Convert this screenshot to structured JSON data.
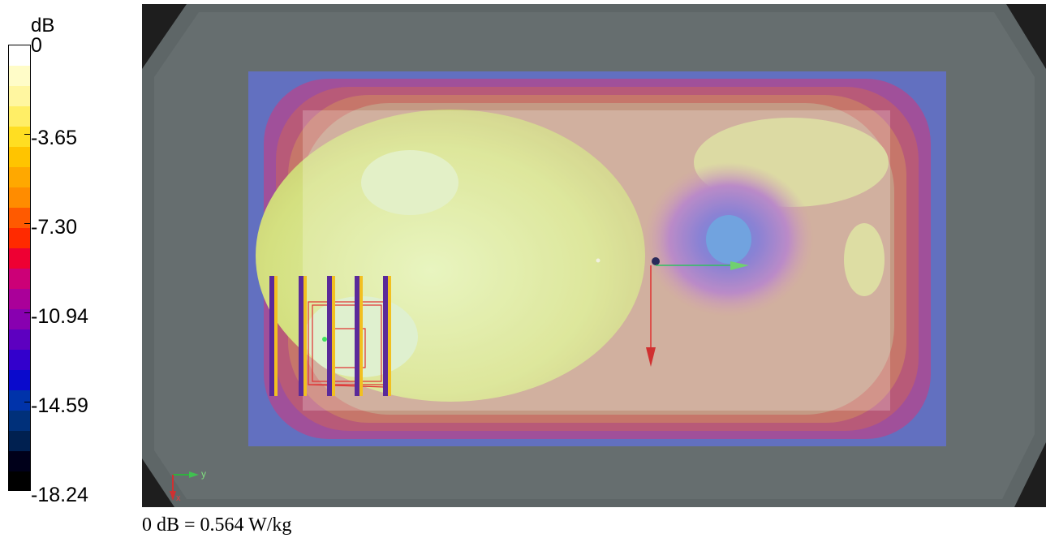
{
  "legend": {
    "unit": "dB",
    "ticks": [
      "0",
      "-3.65",
      "-7.30",
      "-10.94",
      "-14.59",
      "-18.24"
    ],
    "colors": [
      "#ffffff",
      "#fffcc8",
      "#fff6a0",
      "#ffee66",
      "#ffde22",
      "#ffc400",
      "#ffa800",
      "#ff8c00",
      "#ff5a00",
      "#ff2a00",
      "#ee0033",
      "#cc0077",
      "#aa0099",
      "#8800b0",
      "#5d00c0",
      "#3300cc",
      "#0a0acc",
      "#0033aa",
      "#00307a",
      "#002050",
      "#00001a",
      "#000000"
    ]
  },
  "caption": "0 dB = 0.564 W/kg",
  "axes": {
    "y_label": "y",
    "x_label": "x"
  }
}
